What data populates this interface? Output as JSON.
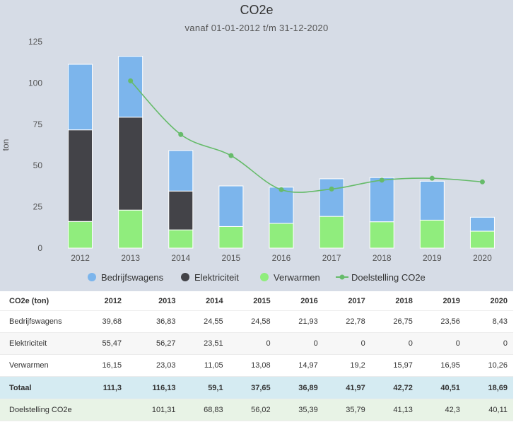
{
  "chart_data": {
    "type": "bar",
    "stacked": true,
    "title": "CO2e",
    "subtitle": "vanaf 01-01-2012 t/m 31-12-2020",
    "ylabel": "ton",
    "ylim": [
      0,
      125
    ],
    "yticks": [
      "0",
      "25",
      "50",
      "75",
      "100",
      "125"
    ],
    "categories": [
      "2012",
      "2013",
      "2014",
      "2015",
      "2016",
      "2017",
      "2018",
      "2019",
      "2020"
    ],
    "series": [
      {
        "name": "Verwarmen",
        "type": "bar",
        "color": "#90ed7d",
        "values": [
          16.15,
          23.03,
          11.05,
          13.08,
          14.97,
          19.2,
          15.97,
          16.95,
          10.26
        ]
      },
      {
        "name": "Elektriciteit",
        "type": "bar",
        "color": "#434348",
        "values": [
          55.47,
          56.27,
          23.51,
          0,
          0,
          0,
          0,
          0,
          0
        ]
      },
      {
        "name": "Bedrijfswagens",
        "type": "bar",
        "color": "#7cb5ec",
        "values": [
          39.68,
          36.83,
          24.55,
          24.58,
          21.93,
          22.78,
          26.75,
          23.56,
          8.43
        ]
      },
      {
        "name": "Doelstelling CO2e",
        "type": "line",
        "color": "#66bb6a",
        "values": [
          null,
          101.31,
          68.83,
          56.02,
          35.39,
          35.79,
          41.13,
          42.3,
          40.11
        ]
      }
    ],
    "legend_order": [
      "Bedrijfswagens",
      "Elektriciteit",
      "Verwarmen",
      "Doelstelling CO2e"
    ],
    "legend_position": "bottom",
    "grid": false
  },
  "table": {
    "header": [
      "CO2e (ton)",
      "2012",
      "2013",
      "2014",
      "2015",
      "2016",
      "2017",
      "2018",
      "2019",
      "2020"
    ],
    "rows": [
      {
        "style": "light",
        "cells": [
          "Bedrijfswagens",
          "39,68",
          "36,83",
          "24,55",
          "24,58",
          "21,93",
          "22,78",
          "26,75",
          "23,56",
          "8,43"
        ]
      },
      {
        "style": "grey",
        "cells": [
          "Elektriciteit",
          "55,47",
          "56,27",
          "23,51",
          "0",
          "0",
          "0",
          "0",
          "0",
          "0"
        ]
      },
      {
        "style": "light",
        "cells": [
          "Verwarmen",
          "16,15",
          "23,03",
          "11,05",
          "13,08",
          "14,97",
          "19,2",
          "15,97",
          "16,95",
          "10,26"
        ]
      },
      {
        "style": "total",
        "cells": [
          "Totaal",
          "111,3",
          "116,13",
          "59,1",
          "37,65",
          "36,89",
          "41,97",
          "42,72",
          "40,51",
          "18,69"
        ]
      },
      {
        "style": "goal",
        "cells": [
          "Doelstelling CO2e",
          "",
          "101,31",
          "68,83",
          "56,02",
          "35,39",
          "35,79",
          "41,13",
          "42,3",
          "40,11"
        ]
      }
    ]
  }
}
